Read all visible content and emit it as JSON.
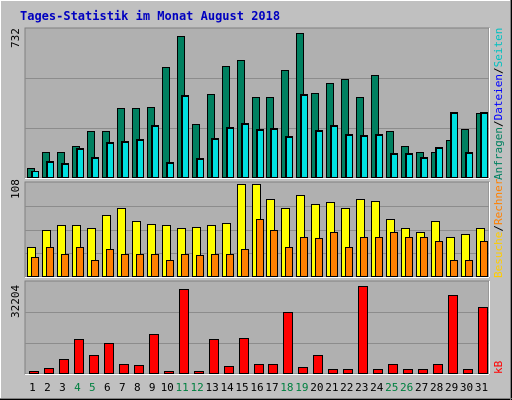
{
  "title": "Tages-Statistik im Monat August 2018",
  "colors": {
    "background": "#c0c0c0",
    "plot_background": "#b0b0b0",
    "title_color": "#0000c0",
    "grid": "#8c8c8c",
    "anfragen": "#008060",
    "dateien": "#00c0ff",
    "seiten": "#00e0e0",
    "besuche": "#ffff00",
    "rechner": "#ff8000",
    "kb": "#ff0000",
    "weekend_label": "#008040",
    "normal_label": "#000000"
  },
  "right_labels": {
    "panel1": [
      {
        "text": "Anfragen",
        "color": "#008060"
      },
      {
        "text": "/",
        "color": "#000000"
      },
      {
        "text": "Dateien",
        "color": "#0000ff"
      },
      {
        "text": "/",
        "color": "#000000"
      },
      {
        "text": "Seiten",
        "color": "#00c0c0"
      }
    ],
    "panel2": [
      {
        "text": "Besuche",
        "color": "#ffcc00"
      },
      {
        "text": "/",
        "color": "#000000"
      },
      {
        "text": "Rechner",
        "color": "#ff8000"
      }
    ],
    "panel3": [
      {
        "text": "kB",
        "color": "#ff0000"
      }
    ]
  },
  "chart_data": {
    "type": "bar",
    "categories": [
      "1",
      "2",
      "3",
      "4",
      "5",
      "6",
      "7",
      "8",
      "9",
      "10",
      "11",
      "12",
      "13",
      "14",
      "15",
      "16",
      "17",
      "18",
      "19",
      "20",
      "21",
      "22",
      "23",
      "24",
      "25",
      "26",
      "27",
      "28",
      "29",
      "30",
      "31"
    ],
    "weekend_days": [
      "4",
      "5",
      "11",
      "12",
      "18",
      "19",
      "25",
      "26"
    ],
    "panels": [
      {
        "max_label": "732",
        "ymax": 732,
        "series": [
          {
            "name": "Anfragen",
            "values": [
              50,
              130,
              130,
              160,
              230,
              230,
              345,
              345,
              350,
              550,
              700,
              265,
              415,
              555,
              585,
              400,
              400,
              535,
              715,
              420,
              470,
              490,
              400,
              510,
              230,
              160,
              130,
              130,
              190,
              240,
              320
            ]
          },
          {
            "name": "Dateien",
            "values": [
              35,
              85,
              75,
              150,
              105,
              180,
              185,
              195,
              260,
              80,
              410,
              100,
              200,
              250,
              270,
              240,
              245,
              210,
              415,
              235,
              260,
              220,
              215,
              220,
              125,
              125,
              105,
              155,
              325,
              130,
              325
            ]
          },
          {
            "name": "Seiten",
            "values": [
              35,
              80,
              70,
              145,
              100,
              175,
              180,
              190,
              255,
              75,
              405,
              95,
              195,
              245,
              265,
              235,
              240,
              205,
              410,
              230,
              255,
              215,
              210,
              215,
              120,
              120,
              100,
              150,
              320,
              125,
              320
            ]
          }
        ]
      },
      {
        "max_label": "108",
        "ymax": 108,
        "series": [
          {
            "name": "Besuche",
            "values": [
              35,
              55,
              60,
              60,
              57,
              72,
              80,
              65,
              62,
              60,
              57,
              58,
              60,
              63,
              108,
              108,
              90,
              80,
              95,
              85,
              87,
              80,
              90,
              88,
              67,
              57,
              52,
              65,
              47,
              50,
              57
            ]
          },
          {
            "name": "Rechner",
            "values": [
              23,
              35,
              27,
              35,
              20,
              33,
              27,
              27,
              27,
              20,
              27,
              25,
              27,
              27,
              32,
              67,
              55,
              35,
              47,
              45,
              52,
              35,
              47,
              47,
              52,
              47,
              47,
              42,
              20,
              20,
              42
            ]
          }
        ]
      },
      {
        "max_label": "32204",
        "ymax": 32204,
        "series": [
          {
            "name": "kB",
            "values": [
              1100,
              2200,
              5200,
              12400,
              6800,
              10800,
              3400,
              3300,
              14000,
              1000,
              30000,
              1100,
              12400,
              2900,
              12800,
              3400,
              3400,
              22000,
              2600,
              6800,
              1600,
              1800,
              31000,
              1600,
              3400,
              1600,
              1600,
              3600,
              28000,
              1600,
              23800
            ]
          }
        ]
      }
    ]
  }
}
